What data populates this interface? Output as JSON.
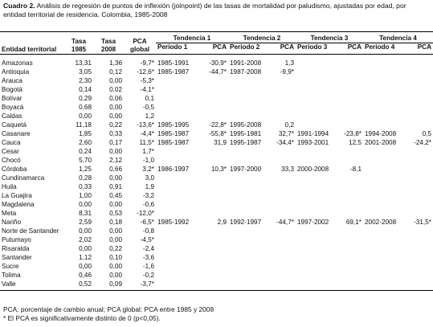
{
  "caption": {
    "label": "Cuadro 2.",
    "text": "Análisis de regresión de puntos de inflexión (joinpoint) de las tasas de mortalidad por paludismo, ajustadas por edad, por entidad territorial de residencia. Colombia, 1985-2008"
  },
  "table": {
    "header": [
      "Entidad territorial",
      "Tasa 1985",
      "Tasa 2008",
      "PCA global",
      "Tendencia 1",
      "Tendencia 2",
      "Tendencia 3",
      "Tendencia 4"
    ],
    "subheader": [
      "Periodo 1",
      "PCA",
      "Periodo 2",
      "PCA",
      "Periodo 3",
      "PCA",
      "Periodo 4",
      "PCA"
    ],
    "rows": [
      [
        "Amazonas",
        "13,31",
        "1,36",
        "-9,7*",
        "1985-1991",
        "-30,9*",
        "1991-2008",
        "1,3"
      ],
      [
        "Antioquia",
        "3,05",
        "0,12",
        "-12,6*",
        "1985-1987",
        "-44,7*",
        "1987-2008",
        "-9,9*"
      ],
      [
        "Arauca",
        "2,30",
        "0,00",
        "-5,3*"
      ],
      [
        "Bogotá",
        "0,14",
        "0,02",
        "-4,1*"
      ],
      [
        "Bolívar",
        "0,29",
        "0,06",
        "0,1"
      ],
      [
        "Boyacá",
        "0,68",
        "0,00",
        "-0,5"
      ],
      [
        "Caldas",
        "0,00",
        "0,00",
        "1,2"
      ],
      [
        "Caquetá",
        "11,18",
        "0,22",
        "-13,6*",
        "1985-1995",
        "-22,8*",
        "1995-2008",
        "0,2"
      ],
      [
        "Casanare",
        "1,85",
        "0,33",
        "-4,4*",
        "1985-1987",
        "-55,8*",
        "1995-1981",
        "32,7*",
        "1991-1994",
        "-23,8*",
        "1994-2008",
        "0,5"
      ],
      [
        "Cauca",
        "2,60",
        "0,17",
        "11,5*",
        "1985-1987",
        "31,9",
        "1995-1987",
        "-34,4*",
        "1993-2001",
        "12,5",
        "2001-2008",
        "-24,2*"
      ],
      [
        "Cesar",
        "0,24",
        "0,00",
        "1,7*"
      ],
      [
        "Chocó",
        "5,70",
        "2,12",
        "-1,0"
      ],
      [
        "Córdoba",
        "1,25",
        "0,66",
        "3,2*",
        "1986-1997",
        "10,3*",
        "1997-2000",
        "33,3",
        "2000-2008",
        "-8,1"
      ],
      [
        "Cundinamarca",
        "0,28",
        "0,00",
        "3,0"
      ],
      [
        "Huila",
        "0,33",
        "0,91",
        "1,9"
      ],
      [
        "La Guajira",
        "1,00",
        "0,45",
        "-3,2"
      ],
      [
        "Magdalena",
        "0,00",
        "0,00",
        "-0,6"
      ],
      [
        "Meta",
        "8,31",
        "0,53",
        "-12,0*"
      ],
      [
        "Nariño",
        "2,59",
        "0,18",
        "-6,5*",
        "1985-1992",
        "2,9",
        "1992-1997",
        "-44,7*",
        "1997-2002",
        "69,1*",
        "2002-2008",
        "-31,5*"
      ],
      [
        "Norte de Santander",
        "0,00",
        "0,00",
        "-0,8"
      ],
      [
        "Putumayo",
        "2,02",
        "0,00",
        "-4,5*"
      ],
      [
        "Risaralda",
        "0,00",
        "0,22",
        "-2,4"
      ],
      [
        "Santander",
        "1,12",
        "0,10",
        "-3,6"
      ],
      [
        "Sucre",
        "0,00",
        "0,00",
        "-1,6"
      ],
      [
        "Tolima",
        "0,46",
        "0,00",
        "-0,2"
      ],
      [
        "Valle",
        "0,52",
        "0,09",
        "-3,7*"
      ]
    ]
  },
  "footnotes": [
    "PCA: porcentaje de cambio anual; PCA global: PCA entre 1985 y 2008",
    "* El PCA es significativamente distinto de 0 (p<0,05)."
  ]
}
